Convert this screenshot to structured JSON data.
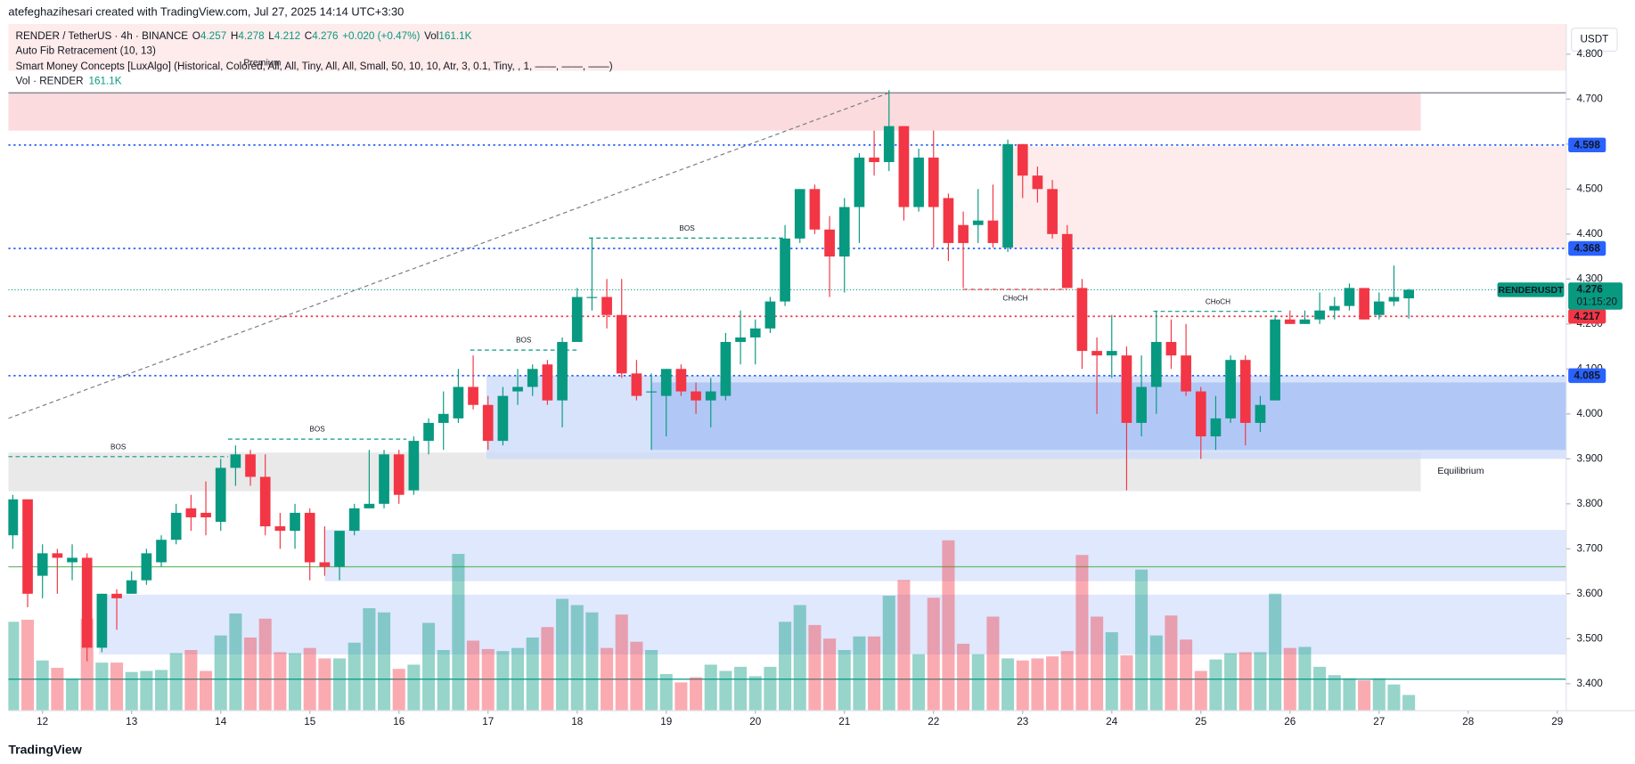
{
  "header": {
    "credit": "atefeghazihesari created with TradingView.com, Jul 27, 2025 14:14 UTC+3:30",
    "logo": "TradingView"
  },
  "chart_data": {
    "type": "candlestick",
    "symbol": "RENDER / TetherUS · 4h · BINANCE",
    "legend": {
      "o": "O",
      "h": "H",
      "l": "L",
      "c": "C",
      "change": "+0.020 (+0.47%)",
      "vol": "Vol",
      "volume_label": "161.1K",
      "indicators": [
        "Auto Fib Retracement (10, 13)",
        "Smart Money Concepts [LuxAlgo] (Historical, Colored, All, All, Tiny, All, All, Small, 50, 10, 10, Atr, 3, 0.1, Tiny, , 1, ——, ——, ——)"
      ],
      "vol_indicator": "Vol · RENDER"
    },
    "currency": "USDT",
    "up_color": "#089981",
    "down_color": "#f23645",
    "open": [
      3.73,
      3.81,
      3.64,
      3.69,
      3.67,
      3.68,
      3.48,
      3.6,
      3.6,
      3.63,
      3.67,
      3.72,
      3.79,
      3.78,
      3.76,
      3.88,
      3.91,
      3.86,
      3.75,
      3.74,
      3.78,
      3.67,
      3.66,
      3.74,
      3.79,
      3.8,
      3.91,
      3.83,
      3.94,
      3.98,
      3.99,
      4.06,
      4.02,
      3.94,
      4.05,
      4.06,
      4.11,
      4.03,
      4.16,
      4.26,
      4.26,
      4.22,
      4.09,
      4.05,
      4.04,
      4.1,
      4.05,
      4.03,
      4.04,
      4.16,
      4.17,
      4.19,
      4.25,
      4.39,
      4.5,
      4.41,
      4.35,
      4.46,
      4.57,
      4.56,
      4.64,
      4.46,
      4.57,
      4.48,
      4.42,
      4.42,
      4.43,
      4.37,
      4.6,
      4.53,
      4.5,
      4.4,
      4.28,
      4.14,
      4.13,
      4.13,
      3.98,
      4.06,
      4.16,
      4.13,
      4.05,
      3.95,
      3.99,
      4.12,
      3.98,
      4.03,
      4.21,
      4.2,
      4.21,
      4.23,
      4.24,
      4.28,
      4.22,
      4.25,
      4.257
    ],
    "high": [
      3.82,
      3.81,
      3.71,
      3.7,
      3.71,
      3.69,
      3.6,
      3.61,
      3.65,
      3.7,
      3.73,
      3.8,
      3.82,
      3.85,
      3.9,
      3.93,
      3.92,
      3.91,
      3.78,
      3.8,
      3.79,
      3.75,
      3.74,
      3.8,
      3.92,
      3.92,
      3.92,
      3.95,
      3.99,
      4.05,
      4.1,
      4.13,
      4.04,
      4.06,
      4.1,
      4.11,
      4.12,
      4.17,
      4.28,
      4.39,
      4.3,
      4.3,
      4.12,
      4.09,
      4.1,
      4.11,
      4.07,
      4.08,
      4.18,
      4.23,
      4.21,
      4.26,
      4.42,
      4.5,
      4.51,
      4.44,
      4.48,
      4.58,
      4.63,
      4.72,
      4.64,
      4.59,
      4.63,
      4.49,
      4.45,
      4.5,
      4.51,
      4.61,
      4.6,
      4.55,
      4.52,
      4.42,
      4.3,
      4.17,
      4.22,
      4.15,
      4.13,
      4.23,
      4.21,
      4.2,
      4.06,
      4.04,
      4.13,
      4.13,
      4.04,
      4.22,
      4.23,
      4.23,
      4.27,
      4.26,
      4.29,
      4.28,
      4.27,
      4.33,
      4.278
    ],
    "low": [
      3.7,
      3.57,
      3.59,
      3.6,
      3.63,
      3.45,
      3.47,
      3.52,
      3.6,
      3.62,
      3.66,
      3.71,
      3.74,
      3.73,
      3.74,
      3.84,
      3.84,
      3.73,
      3.7,
      3.7,
      3.63,
      3.64,
      3.63,
      3.73,
      3.79,
      3.79,
      3.8,
      3.82,
      3.91,
      3.92,
      3.98,
      4.01,
      3.92,
      3.93,
      4.02,
      4.04,
      4.02,
      3.97,
      4.16,
      4.23,
      4.19,
      4.08,
      4.03,
      3.92,
      3.95,
      4.04,
      4.0,
      3.97,
      4.03,
      4.11,
      4.11,
      4.18,
      4.24,
      4.38,
      4.4,
      4.26,
      4.27,
      4.38,
      4.53,
      4.54,
      4.43,
      4.45,
      4.37,
      4.34,
      4.28,
      4.38,
      4.37,
      4.36,
      4.48,
      4.47,
      4.39,
      4.28,
      4.1,
      4.0,
      4.08,
      3.83,
      3.95,
      4.0,
      4.1,
      4.04,
      3.9,
      3.92,
      3.98,
      3.93,
      3.96,
      4.03,
      4.2,
      4.2,
      4.2,
      4.21,
      4.23,
      4.21,
      4.21,
      4.24,
      4.212
    ],
    "close": [
      3.81,
      3.6,
      3.69,
      3.68,
      3.68,
      3.48,
      3.6,
      3.59,
      3.63,
      3.69,
      3.72,
      3.78,
      3.77,
      3.77,
      3.88,
      3.91,
      3.86,
      3.75,
      3.74,
      3.78,
      3.67,
      3.66,
      3.74,
      3.79,
      3.8,
      3.91,
      3.82,
      3.94,
      3.98,
      4.0,
      4.06,
      4.02,
      3.94,
      4.04,
      4.06,
      4.1,
      4.03,
      4.16,
      4.26,
      4.26,
      4.22,
      4.09,
      4.04,
      4.05,
      4.1,
      4.05,
      4.03,
      4.05,
      4.16,
      4.17,
      4.19,
      4.25,
      4.39,
      4.5,
      4.41,
      4.35,
      4.46,
      4.57,
      4.56,
      4.64,
      4.46,
      4.57,
      4.46,
      4.38,
      4.38,
      4.43,
      4.38,
      4.6,
      4.53,
      4.5,
      4.4,
      4.28,
      4.14,
      4.13,
      4.14,
      3.98,
      4.06,
      4.16,
      4.13,
      4.05,
      3.95,
      3.99,
      4.12,
      3.98,
      4.02,
      4.21,
      4.2,
      4.21,
      4.23,
      4.24,
      4.28,
      4.21,
      4.25,
      4.26,
      4.276
    ],
    "volume": [
      910,
      931,
      514,
      439,
      321,
      942,
      492,
      492,
      396,
      407,
      417,
      589,
      621,
      407,
      770,
      995,
      749,
      942,
      599,
      589,
      642,
      535,
      535,
      696,
      1049,
      1006,
      428,
      471,
      899,
      621,
      1605,
      717,
      631,
      610,
      642,
      749,
      856,
      1145,
      1081,
      1006,
      642,
      984,
      706,
      621,
      375,
      289,
      342,
      471,
      407,
      449,
      353,
      449,
      910,
      1081,
      877,
      738,
      621,
      760,
      760,
      1177,
      1338,
      578,
      1156,
      1744,
      685,
      578,
      963,
      535,
      514,
      535,
      556,
      610,
      1594,
      963,
      803,
      567,
      1445,
      770,
      974,
      728,
      407,
      524,
      589,
      599,
      599,
      1198,
      642,
      653,
      449,
      364,
      332,
      310,
      332,
      268,
      161.1
    ],
    "xlim": [
      -0.3,
      104.6
    ],
    "ylim": [
      3.34,
      4.867
    ],
    "xticks": [
      {
        "value": 2,
        "label": "12"
      },
      {
        "value": 8,
        "label": "13"
      },
      {
        "value": 14,
        "label": "14"
      },
      {
        "value": 20,
        "label": "15"
      },
      {
        "value": 26,
        "label": "16"
      },
      {
        "value": 32,
        "label": "17"
      },
      {
        "value": 38,
        "label": "18"
      },
      {
        "value": 44,
        "label": "19"
      },
      {
        "value": 50,
        "label": "20"
      },
      {
        "value": 56,
        "label": "21"
      },
      {
        "value": 62,
        "label": "22"
      },
      {
        "value": 68,
        "label": "23"
      },
      {
        "value": 74,
        "label": "24"
      },
      {
        "value": 80,
        "label": "25"
      },
      {
        "value": 86,
        "label": "26"
      },
      {
        "value": 92,
        "label": "27"
      },
      {
        "value": 98,
        "label": "28"
      },
      {
        "value": 104,
        "label": "29"
      }
    ],
    "yticks": [
      {
        "value": 3.4,
        "label": "3.400"
      },
      {
        "value": 3.5,
        "label": "3.500"
      },
      {
        "value": 3.6,
        "label": "3.600"
      },
      {
        "value": 3.7,
        "label": "3.700"
      },
      {
        "value": 3.8,
        "label": "3.800"
      },
      {
        "value": 3.9,
        "label": "3.900"
      },
      {
        "value": 4.0,
        "label": "4.000"
      },
      {
        "value": 4.1,
        "label": "4.100"
      },
      {
        "value": 4.2,
        "label": "4.200"
      },
      {
        "value": 4.3,
        "label": "4.300"
      },
      {
        "value": 4.4,
        "label": "4.400"
      },
      {
        "value": 4.5,
        "label": "4.500"
      },
      {
        "value": 4.6,
        "label": "4.600"
      },
      {
        "value": 4.7,
        "label": "4.700"
      },
      {
        "value": 4.8,
        "label": "4.800"
      }
    ],
    "zones": [
      {
        "x": [
          -0.3,
          104.6
        ],
        "y": [
          4.763,
          4.867
        ],
        "color": "#fde4e4"
      },
      {
        "x": [
          -0.3,
          94.8
        ],
        "y": [
          4.63,
          4.714
        ],
        "color": "#f9cfd2"
      },
      {
        "x": [
          66.5,
          104.6
        ],
        "y": [
          4.367,
          4.595
        ],
        "color": "#fde4e4"
      },
      {
        "x": [
          -0.3,
          94.8
        ],
        "y": [
          3.828,
          3.914
        ],
        "color": "#e2e2e2"
      },
      {
        "x": [
          31.9,
          104.6
        ],
        "y": [
          3.9,
          4.085
        ],
        "color": "#c9d9fa"
      },
      {
        "x": [
          43,
          104.6
        ],
        "y": [
          3.92,
          4.07
        ],
        "color": "#a4bff6"
      },
      {
        "x": [
          21,
          104.6
        ],
        "y": [
          3.628,
          3.742
        ],
        "color": "#d4e0fb"
      },
      {
        "x": [
          5.8,
          104.6
        ],
        "y": [
          3.465,
          3.598
        ],
        "color": "#d4e0fb"
      }
    ],
    "zone_labels": [
      {
        "text": "Premium",
        "x": 16.8,
        "y": 4.78,
        "color": "#f23645"
      },
      {
        "text": "Equilibrium",
        "x": 97.5,
        "y": 3.872,
        "color": "#9598a1"
      }
    ],
    "lines": [
      {
        "price": 4.714,
        "color": "#787b86"
      },
      {
        "price": 3.66,
        "color": "#66bb6a"
      },
      {
        "price": 3.41,
        "color": "#009688"
      }
    ],
    "trendline": {
      "x": [
        -0.3,
        59
      ],
      "y": [
        3.99,
        4.714
      ],
      "color": "#787b86"
    },
    "levels": [
      {
        "price": 4.598,
        "color": "#2962ff"
      },
      {
        "price": 4.368,
        "color": "#2962ff"
      },
      {
        "price": 4.085,
        "color": "#2962ff"
      },
      {
        "price": 4.217,
        "color": "#f23645"
      }
    ],
    "current": {
      "ticker": "RENDERUSDT",
      "countdown": "01:15:20",
      "color": "#089981"
    },
    "structures": [
      {
        "label": "BOS",
        "price": 3.905,
        "x": [
          -0.3,
          14.5
        ],
        "color": "#089981"
      },
      {
        "label": "BOS",
        "price": 3.944,
        "x": [
          14.5,
          26.5
        ],
        "color": "#089981"
      },
      {
        "label": "BOS",
        "price": 4.142,
        "x": [
          30.8,
          38
        ],
        "color": "#089981"
      },
      {
        "label": "BOS",
        "price": 4.391,
        "x": [
          38.8,
          52
        ],
        "color": "#089981"
      },
      {
        "label": "CHoCH",
        "price": 4.277,
        "x": [
          64,
          71
        ],
        "color": "#f23645"
      },
      {
        "label": "CHoCH",
        "price": 4.228,
        "x": [
          76.8,
          85.5
        ],
        "color": "#089981"
      }
    ]
  }
}
